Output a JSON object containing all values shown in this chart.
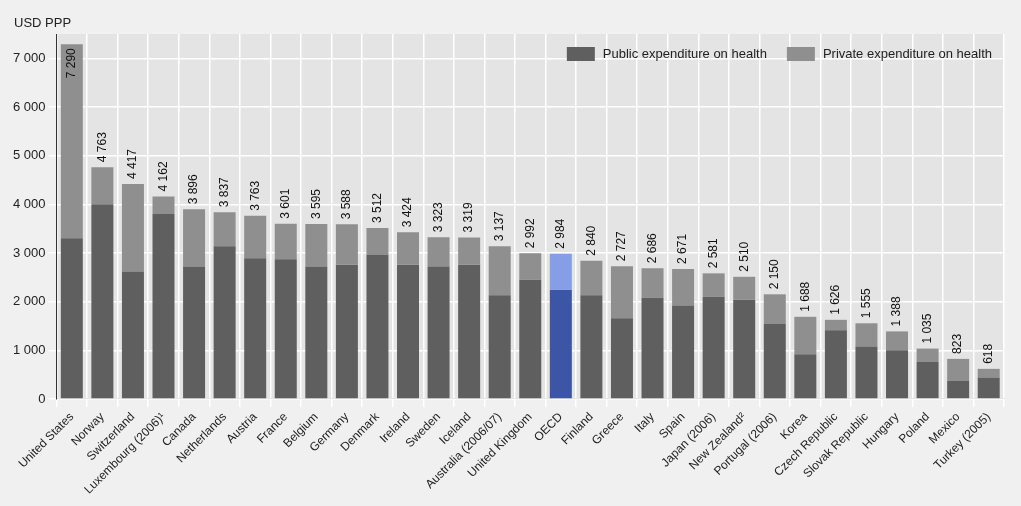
{
  "chart_data": {
    "type": "bar",
    "stacked": true,
    "ylabel": "USD PPP",
    "categories": [
      "United States",
      "Norway",
      "Switzerland",
      "Luxembourg (2006)¹",
      "Canada",
      "Netherlands",
      "Austria",
      "France",
      "Belgium",
      "Germany",
      "Denmark",
      "Ireland",
      "Sweden",
      "Iceland",
      "Australia (2006/07)",
      "United Kingdom",
      "OECD",
      "Finland",
      "Greece",
      "Italy",
      "Spain",
      "Japan (2006)",
      "New Zealand²",
      "Portugal (2006)",
      "Korea",
      "Czech Republic",
      "Slovak Republic",
      "Hungary",
      "Poland",
      "Mexico",
      "Turkey (2005)"
    ],
    "series": [
      {
        "name": "Public expenditure on health",
        "color": "#5f5f5f",
        "colors": [
          "#5f5f5f",
          "#5f5f5f",
          "#5f5f5f",
          "#5f5f5f",
          "#5f5f5f",
          "#5f5f5f",
          "#5f5f5f",
          "#5f5f5f",
          "#5f5f5f",
          "#5f5f5f",
          "#5f5f5f",
          "#5f5f5f",
          "#5f5f5f",
          "#5f5f5f",
          "#5f5f5f",
          "#5f5f5f",
          "#3c55a5",
          "#5f5f5f",
          "#5f5f5f",
          "#5f5f5f",
          "#5f5f5f",
          "#5f5f5f",
          "#5f5f5f",
          "#5f5f5f",
          "#5f5f5f",
          "#5f5f5f",
          "#5f5f5f",
          "#5f5f5f",
          "#5f5f5f",
          "#5f5f5f",
          "#5f5f5f"
        ],
        "values": [
          3300,
          4000,
          2620,
          3800,
          2720,
          3140,
          2890,
          2870,
          2720,
          2760,
          2960,
          2760,
          2720,
          2760,
          2130,
          2450,
          2240,
          2130,
          1660,
          2080,
          1920,
          2100,
          2040,
          1540,
          920,
          1410,
          1070,
          1000,
          760,
          370,
          440
        ]
      },
      {
        "name": "Private expenditure on health",
        "color": "#8f8f8f",
        "colors": [
          "#8f8f8f",
          "#8f8f8f",
          "#8f8f8f",
          "#8f8f8f",
          "#8f8f8f",
          "#8f8f8f",
          "#8f8f8f",
          "#8f8f8f",
          "#8f8f8f",
          "#8f8f8f",
          "#8f8f8f",
          "#8f8f8f",
          "#8f8f8f",
          "#8f8f8f",
          "#8f8f8f",
          "#8f8f8f",
          "#869ee6",
          "#8f8f8f",
          "#8f8f8f",
          "#8f8f8f",
          "#8f8f8f",
          "#8f8f8f",
          "#8f8f8f",
          "#8f8f8f",
          "#8f8f8f",
          "#8f8f8f",
          "#8f8f8f",
          "#8f8f8f",
          "#8f8f8f",
          "#8f8f8f",
          "#8f8f8f"
        ],
        "values": [
          3990,
          763,
          1797,
          362,
          1176,
          697,
          873,
          731,
          875,
          828,
          552,
          664,
          603,
          559,
          1007,
          542,
          744,
          710,
          1067,
          606,
          751,
          481,
          470,
          610,
          768,
          216,
          485,
          388,
          275,
          453,
          178
        ]
      }
    ],
    "totals": [
      "7 290",
      "4 763",
      "4 417",
      "4 162",
      "3 896",
      "3 837",
      "3 763",
      "3 601",
      "3 595",
      "3 588",
      "3 512",
      "3 424",
      "3 323",
      "3 319",
      "3 137",
      "2 992",
      "2 984",
      "2 840",
      "2 727",
      "2 686",
      "2 671",
      "2 581",
      "2 510",
      "2 150",
      "1 688",
      "1 626",
      "1 555",
      "1 388",
      "1 035",
      "823",
      "618"
    ],
    "ylim": [
      0,
      7500
    ],
    "yticks": [
      {
        "value": 0,
        "label": "0"
      },
      {
        "value": 1000,
        "label": "1 000"
      },
      {
        "value": 2000,
        "label": "2 000"
      },
      {
        "value": 3000,
        "label": "3 000"
      },
      {
        "value": 4000,
        "label": "4 000"
      },
      {
        "value": 5000,
        "label": "5 000"
      },
      {
        "value": 6000,
        "label": "6 000"
      },
      {
        "value": 7000,
        "label": "7 000"
      }
    ],
    "grid": true,
    "legend": "top right"
  }
}
